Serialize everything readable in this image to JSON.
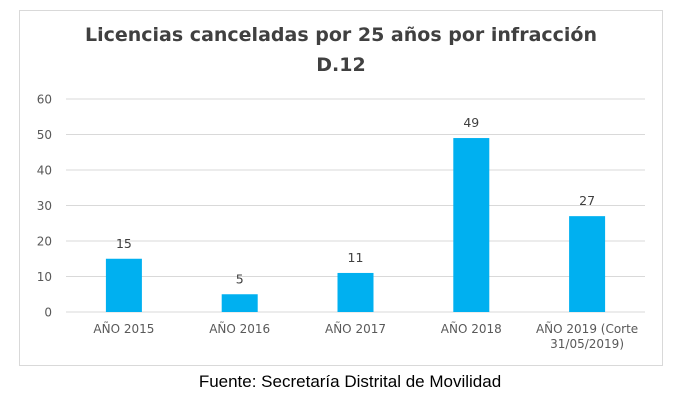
{
  "chart_data": {
    "type": "bar",
    "title_lines": [
      "Licencias canceladas por 25 años por infracción",
      "D.12"
    ],
    "categories": [
      [
        "AÑO 2015"
      ],
      [
        "AÑO 2016"
      ],
      [
        "AÑO 2017"
      ],
      [
        "AÑO 2018"
      ],
      [
        "AÑO 2019 (Corte",
        "31/05/2019)"
      ]
    ],
    "values": [
      15,
      5,
      11,
      49,
      27
    ],
    "data_labels": [
      "15",
      "5",
      "11",
      "49",
      "27"
    ],
    "ylim": [
      0,
      60
    ],
    "yticks": [
      0,
      10,
      20,
      30,
      40,
      50,
      60
    ],
    "xlabel": "",
    "ylabel": "",
    "grid": true,
    "legend": "none",
    "bar_color": "#00b0f0",
    "grid_color": "#d9d9d9",
    "label_color": "#595959"
  },
  "source": "Fuente: Secretaría Distrital de Movilidad"
}
